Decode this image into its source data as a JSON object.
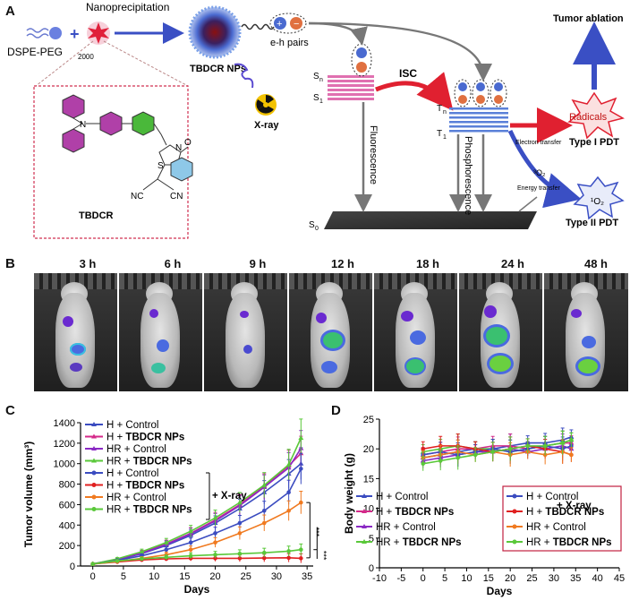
{
  "panels": {
    "a": "A",
    "b": "B",
    "c": "C",
    "d": "D"
  },
  "schematic": {
    "dspe_label": "DSPE-PEG",
    "dspe_sub": "2000",
    "nanoprecipitation": "Nanoprecipitation",
    "np_label": "TBDCR NPs",
    "eh_pairs": "e-h pairs",
    "xray_label": "X-ray",
    "molecule_label": "TBDCR",
    "cn1": "NC",
    "cn2": "CN",
    "atom_n": "N",
    "atom_s": "S",
    "atom_n2": "N",
    "atom_o": "O",
    "sn": "S",
    "sn_sub": "n",
    "s1": "S",
    "s1_sub": "1",
    "s0": "S",
    "s0_sub": "0",
    "tn": "T",
    "tn_sub": "n",
    "t1": "T",
    "t1_sub": "1",
    "isc": "ISC",
    "fluorescence": "Fluorescence",
    "phosphorescence": "Phosphorescence",
    "tumor_ablation": "Tumor ablation",
    "radicals": "Radicals",
    "type1": "Type  I  PDT",
    "type2": "Type  II  PDT",
    "electron_transfer": "Electron\ntransfer",
    "energy_transfer": "Energy\ntransfer",
    "o2": "³O₂",
    "singlet_o2": "¹O₂"
  },
  "timepoints": [
    "3 h",
    "6 h",
    "9 h",
    "12 h",
    "18 h",
    "24 h",
    "48 h"
  ],
  "legend_groups": [
    "H + Control",
    "H + TBDCR NPs",
    "HR + Control",
    "HR + TBDCR NPs"
  ],
  "xray_note": "+ X-ray",
  "significance": [
    "***",
    "***"
  ],
  "chart_data": [
    {
      "type": "line",
      "title": "",
      "xlabel": "Days",
      "ylabel": "Tumor volume (mm³)",
      "xlim": [
        -2,
        36
      ],
      "ylim": [
        0,
        1400
      ],
      "xticks": [
        0,
        5,
        10,
        15,
        20,
        25,
        30,
        35
      ],
      "yticks": [
        0,
        200,
        400,
        600,
        800,
        1000,
        1200,
        1400
      ],
      "x": [
        0,
        4,
        8,
        12,
        16,
        20,
        24,
        28,
        32,
        34
      ],
      "series": [
        {
          "name": "H + Control",
          "group": "no-xray",
          "color": "#3b4cc0",
          "values": [
            20,
            60,
            120,
            200,
            300,
            420,
            560,
            720,
            900,
            1000
          ]
        },
        {
          "name": "H + TBDCR NPs",
          "group": "no-xray",
          "color": "#d42a8a",
          "values": [
            20,
            65,
            130,
            215,
            320,
            450,
            600,
            780,
            980,
            1100
          ]
        },
        {
          "name": "HR + Control",
          "group": "no-xray",
          "color": "#8b2ac4",
          "values": [
            20,
            62,
            125,
            210,
            315,
            440,
            590,
            770,
            960,
            1150
          ]
        },
        {
          "name": "HR + TBDCR NPs",
          "group": "no-xray",
          "color": "#5ac83a",
          "values": [
            20,
            70,
            140,
            230,
            340,
            470,
            620,
            790,
            990,
            1250
          ]
        },
        {
          "name": "H + Control",
          "group": "xray",
          "color": "#3b4cc0",
          "values": [
            20,
            55,
            100,
            160,
            230,
            320,
            420,
            540,
            720,
            950
          ]
        },
        {
          "name": "H + TBDCR NPs",
          "group": "xray",
          "color": "#e02020",
          "values": [
            20,
            40,
            60,
            70,
            75,
            75,
            75,
            78,
            80,
            75
          ]
        },
        {
          "name": "HR + Control",
          "group": "xray",
          "color": "#f07a20",
          "values": [
            20,
            45,
            75,
            110,
            160,
            230,
            320,
            420,
            540,
            620
          ]
        },
        {
          "name": "HR + TBDCR NPs",
          "group": "xray",
          "color": "#5ac83a",
          "values": [
            20,
            50,
            70,
            85,
            100,
            110,
            120,
            130,
            145,
            160
          ]
        }
      ]
    },
    {
      "type": "line",
      "title": "",
      "xlabel": "Days",
      "ylabel": "Body weight (g)",
      "xlim": [
        -10,
        45
      ],
      "ylim": [
        0,
        25
      ],
      "xticks": [
        -10,
        -5,
        0,
        5,
        10,
        15,
        20,
        25,
        30,
        35,
        40,
        45
      ],
      "yticks": [
        0,
        5,
        10,
        15,
        20,
        25
      ],
      "x": [
        0,
        4,
        8,
        12,
        16,
        20,
        24,
        28,
        32,
        34
      ],
      "series": [
        {
          "name": "H + Control",
          "group": "no-xray",
          "color": "#3b4cc0",
          "values": [
            18.5,
            19.0,
            19.5,
            20.0,
            20.0,
            20.5,
            21.0,
            21.0,
            21.5,
            22.0
          ]
        },
        {
          "name": "H + TBDCR NPs",
          "group": "no-xray",
          "color": "#d42a8a",
          "values": [
            19.0,
            19.5,
            20.0,
            20.0,
            20.5,
            20.5,
            20.0,
            20.5,
            21.0,
            21.0
          ]
        },
        {
          "name": "HR + Control",
          "group": "no-xray",
          "color": "#8b2ac4",
          "values": [
            18.0,
            18.5,
            19.0,
            19.5,
            19.5,
            20.0,
            19.5,
            20.0,
            20.5,
            20.0
          ]
        },
        {
          "name": "HR + TBDCR NPs",
          "group": "no-xray",
          "color": "#5ac83a",
          "values": [
            19.5,
            20.0,
            20.5,
            20.0,
            20.0,
            19.5,
            20.0,
            20.5,
            21.0,
            21.5
          ]
        },
        {
          "name": "H + Control",
          "group": "xray",
          "color": "#3b4cc0",
          "values": [
            19.0,
            19.5,
            19.0,
            19.5,
            20.0,
            19.5,
            20.0,
            20.5,
            20.0,
            20.5
          ]
        },
        {
          "name": "H + TBDCR NPs",
          "group": "xray",
          "color": "#e02020",
          "values": [
            20.0,
            20.5,
            20.5,
            20.0,
            19.5,
            20.0,
            20.5,
            20.0,
            19.5,
            19.0
          ]
        },
        {
          "name": "HR + Control",
          "group": "xray",
          "color": "#f07a20",
          "values": [
            18.5,
            19.0,
            19.5,
            19.0,
            19.5,
            19.0,
            19.5,
            19.0,
            19.5,
            19.0
          ]
        },
        {
          "name": "HR + TBDCR NPs",
          "group": "xray",
          "color": "#5ac83a",
          "values": [
            17.5,
            18.0,
            18.5,
            19.0,
            19.5,
            20.0,
            20.5,
            20.5,
            21.0,
            21.5
          ]
        }
      ]
    }
  ]
}
